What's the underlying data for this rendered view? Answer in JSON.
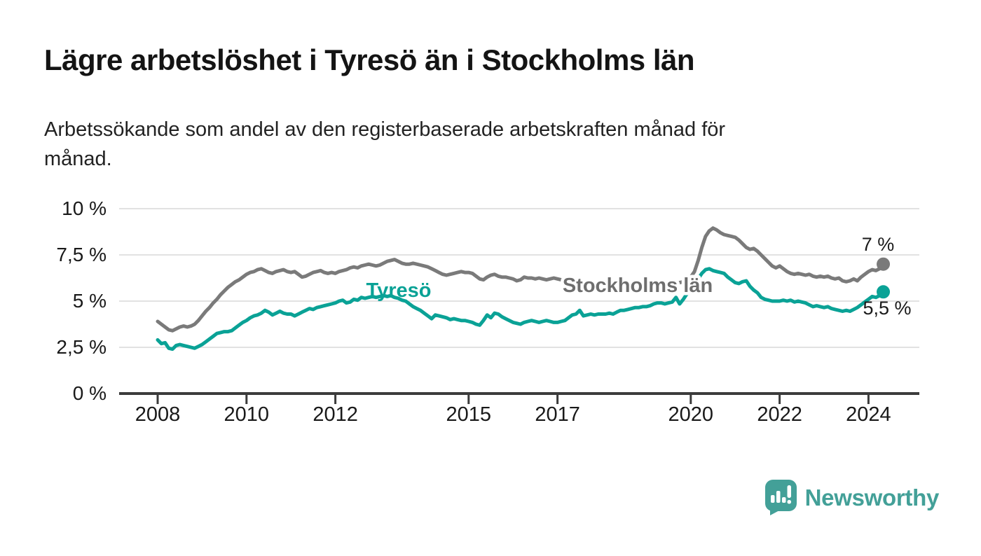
{
  "header": {
    "title": "Lägre arbetslöshet i Tyresö än i Stockholms län",
    "subtitle": "Arbetssökande som andel av den registerbaserade arbetskraften månad för\nmånad."
  },
  "chart_data": {
    "type": "line",
    "title": "Lägre arbetslöshet i Tyresö än i Stockholms län",
    "x_start_year": 2008,
    "points_per_year": 12,
    "ylim": [
      0,
      10
    ],
    "grid": true,
    "y_ticks": [
      {
        "label": "0 %",
        "value": 0
      },
      {
        "label": "2,5 %",
        "value": 2.5
      },
      {
        "label": "5 %",
        "value": 5
      },
      {
        "label": "7,5 %",
        "value": 7.5
      },
      {
        "label": "10 %",
        "value": 10
      }
    ],
    "x_ticks": [
      2008,
      2010,
      2012,
      2015,
      2017,
      2020,
      2022,
      2024
    ],
    "series": [
      {
        "name": "Stockholms län",
        "color": "#7a7a7a",
        "label_color": "#6e6e6e",
        "end_label": "7 %",
        "end_value": 7.0,
        "values": [
          3.9,
          3.75,
          3.6,
          3.45,
          3.4,
          3.5,
          3.6,
          3.65,
          3.6,
          3.65,
          3.75,
          3.95,
          4.2,
          4.45,
          4.65,
          4.9,
          5.1,
          5.35,
          5.55,
          5.75,
          5.9,
          6.05,
          6.15,
          6.3,
          6.45,
          6.55,
          6.6,
          6.7,
          6.75,
          6.65,
          6.55,
          6.5,
          6.6,
          6.65,
          6.7,
          6.6,
          6.55,
          6.6,
          6.45,
          6.3,
          6.35,
          6.45,
          6.55,
          6.6,
          6.65,
          6.55,
          6.5,
          6.55,
          6.5,
          6.6,
          6.65,
          6.7,
          6.8,
          6.85,
          6.8,
          6.9,
          6.95,
          7.0,
          6.95,
          6.9,
          6.95,
          7.05,
          7.15,
          7.2,
          7.25,
          7.15,
          7.05,
          7.0,
          7.0,
          7.05,
          7.0,
          6.95,
          6.9,
          6.85,
          6.75,
          6.65,
          6.55,
          6.45,
          6.4,
          6.45,
          6.5,
          6.55,
          6.6,
          6.55,
          6.55,
          6.5,
          6.35,
          6.2,
          6.15,
          6.3,
          6.4,
          6.45,
          6.35,
          6.3,
          6.3,
          6.25,
          6.2,
          6.1,
          6.15,
          6.3,
          6.25,
          6.25,
          6.2,
          6.25,
          6.2,
          6.15,
          6.2,
          6.25,
          6.2,
          6.15,
          6.1,
          6.15,
          6.1,
          6.05,
          6.0,
          5.95,
          5.9,
          5.9,
          5.85,
          5.85,
          5.8,
          5.8,
          5.75,
          5.7,
          5.7,
          5.65,
          5.65,
          5.6,
          5.6,
          5.65,
          5.65,
          5.7,
          5.7,
          5.7,
          5.75,
          5.75,
          5.8,
          5.85,
          5.9,
          5.9,
          5.95,
          6.0,
          6.05,
          6.15,
          6.3,
          6.6,
          7.2,
          7.9,
          8.5,
          8.8,
          8.95,
          8.85,
          8.7,
          8.6,
          8.55,
          8.5,
          8.45,
          8.3,
          8.1,
          7.9,
          7.8,
          7.85,
          7.7,
          7.5,
          7.3,
          7.1,
          6.9,
          6.8,
          6.9,
          6.75,
          6.6,
          6.5,
          6.45,
          6.5,
          6.45,
          6.4,
          6.45,
          6.35,
          6.3,
          6.35,
          6.3,
          6.35,
          6.25,
          6.2,
          6.25,
          6.1,
          6.05,
          6.1,
          6.2,
          6.1,
          6.3,
          6.45,
          6.6,
          6.7,
          6.65,
          6.75,
          7.0
        ]
      },
      {
        "name": "Tyresö",
        "color": "#0aa296",
        "label_color": "#0aa296",
        "end_label": "5,5 %",
        "end_value": 5.5,
        "values": [
          2.9,
          2.7,
          2.75,
          2.45,
          2.4,
          2.6,
          2.65,
          2.6,
          2.55,
          2.5,
          2.45,
          2.55,
          2.65,
          2.8,
          2.95,
          3.1,
          3.25,
          3.3,
          3.35,
          3.35,
          3.4,
          3.55,
          3.7,
          3.85,
          3.95,
          4.1,
          4.2,
          4.25,
          4.35,
          4.5,
          4.4,
          4.25,
          4.35,
          4.45,
          4.35,
          4.3,
          4.3,
          4.2,
          4.3,
          4.4,
          4.5,
          4.6,
          4.55,
          4.65,
          4.7,
          4.75,
          4.8,
          4.85,
          4.9,
          5.0,
          5.05,
          4.9,
          4.95,
          5.1,
          5.05,
          5.2,
          5.15,
          5.2,
          5.25,
          5.2,
          5.25,
          5.3,
          5.25,
          5.3,
          5.2,
          5.15,
          5.05,
          5.0,
          4.85,
          4.7,
          4.6,
          4.5,
          4.35,
          4.2,
          4.05,
          4.25,
          4.2,
          4.15,
          4.1,
          4.0,
          4.05,
          4.0,
          3.95,
          3.95,
          3.9,
          3.85,
          3.75,
          3.7,
          3.95,
          4.25,
          4.1,
          4.35,
          4.3,
          4.15,
          4.05,
          3.95,
          3.85,
          3.8,
          3.75,
          3.85,
          3.9,
          3.95,
          3.9,
          3.85,
          3.9,
          3.95,
          3.9,
          3.85,
          3.85,
          3.9,
          3.95,
          4.1,
          4.25,
          4.3,
          4.5,
          4.2,
          4.25,
          4.3,
          4.25,
          4.3,
          4.3,
          4.3,
          4.35,
          4.3,
          4.4,
          4.5,
          4.5,
          4.55,
          4.6,
          4.65,
          4.65,
          4.7,
          4.7,
          4.75,
          4.85,
          4.9,
          4.9,
          4.85,
          4.9,
          4.95,
          5.2,
          4.85,
          5.1,
          5.4,
          5.5,
          5.8,
          6.2,
          6.5,
          6.7,
          6.75,
          6.65,
          6.6,
          6.55,
          6.5,
          6.3,
          6.15,
          6.0,
          5.95,
          6.05,
          6.1,
          5.8,
          5.6,
          5.45,
          5.2,
          5.1,
          5.05,
          5.0,
          5.0,
          5.0,
          5.05,
          5.0,
          5.05,
          4.95,
          5.0,
          4.95,
          4.9,
          4.8,
          4.7,
          4.75,
          4.7,
          4.65,
          4.7,
          4.6,
          4.55,
          4.5,
          4.45,
          4.5,
          4.45,
          4.55,
          4.65,
          4.8,
          4.95,
          5.1,
          5.25,
          5.2,
          5.3,
          5.5
        ]
      }
    ]
  },
  "footer": {
    "brand": "Newsworthy",
    "brand_color": "#43a098"
  }
}
